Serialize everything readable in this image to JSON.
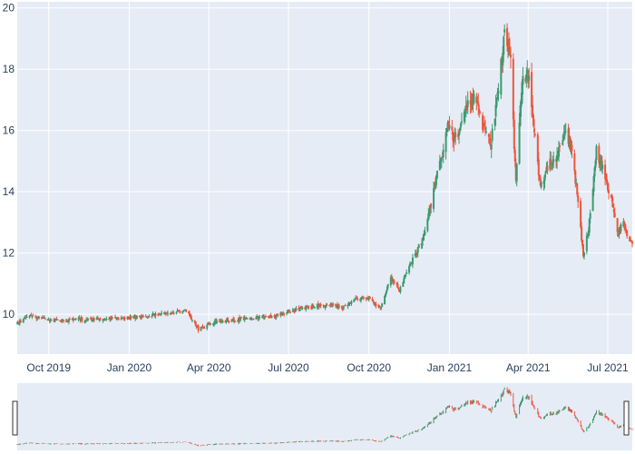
{
  "chart_data": {
    "type": "candlestick",
    "title": "",
    "xlabel": "",
    "ylabel": "",
    "ylim": [
      8.7,
      20.2
    ],
    "y_ticks": [
      10,
      12,
      14,
      16,
      18,
      20
    ],
    "x_range": [
      "2019-08-26",
      "2021-07-29"
    ],
    "x_ticks": [
      {
        "date": "2019-10-01",
        "label": "Oct 2019"
      },
      {
        "date": "2020-01-01",
        "label": "Jan 2020"
      },
      {
        "date": "2020-04-01",
        "label": "Apr 2020"
      },
      {
        "date": "2020-07-01",
        "label": "Jul 2020"
      },
      {
        "date": "2020-10-01",
        "label": "Oct 2020"
      },
      {
        "date": "2021-01-01",
        "label": "Jan 2021"
      },
      {
        "date": "2021-04-01",
        "label": "Apr 2021"
      },
      {
        "date": "2021-07-01",
        "label": "Jul 2021"
      }
    ],
    "close_path": [
      [
        "2019-08-26",
        9.7
      ],
      [
        "2019-09-10",
        9.95
      ],
      [
        "2019-09-25",
        9.85
      ],
      [
        "2019-10-10",
        9.8
      ],
      [
        "2019-10-31",
        9.82
      ],
      [
        "2019-11-30",
        9.85
      ],
      [
        "2019-12-20",
        9.88
      ],
      [
        "2020-01-15",
        9.92
      ],
      [
        "2020-02-10",
        10.02
      ],
      [
        "2020-03-05",
        10.1
      ],
      [
        "2020-03-16",
        9.75
      ],
      [
        "2020-03-20",
        9.5
      ],
      [
        "2020-04-05",
        9.75
      ],
      [
        "2020-04-30",
        9.82
      ],
      [
        "2020-05-20",
        9.88
      ],
      [
        "2020-06-15",
        9.92
      ],
      [
        "2020-07-01",
        10.1
      ],
      [
        "2020-07-25",
        10.25
      ],
      [
        "2020-08-15",
        10.3
      ],
      [
        "2020-09-01",
        10.2
      ],
      [
        "2020-09-20",
        10.55
      ],
      [
        "2020-10-01",
        10.5
      ],
      [
        "2020-10-15",
        10.2
      ],
      [
        "2020-10-25",
        11.2
      ],
      [
        "2020-11-05",
        10.8
      ],
      [
        "2020-11-20",
        11.8
      ],
      [
        "2020-12-01",
        12.4
      ],
      [
        "2020-12-10",
        13.5
      ],
      [
        "2020-12-20",
        14.8
      ],
      [
        "2020-12-31",
        16.2
      ],
      [
        "2021-01-10",
        15.5
      ],
      [
        "2021-01-20",
        16.8
      ],
      [
        "2021-01-31",
        17.2
      ],
      [
        "2021-02-10",
        16.0
      ],
      [
        "2021-02-17",
        15.5
      ],
      [
        "2021-02-25",
        17.0
      ],
      [
        "2021-03-05",
        19.3
      ],
      [
        "2021-03-12",
        18.2
      ],
      [
        "2021-03-18",
        14.3
      ],
      [
        "2021-03-25",
        17.5
      ],
      [
        "2021-04-01",
        17.8
      ],
      [
        "2021-04-08",
        16.0
      ],
      [
        "2021-04-15",
        14.2
      ],
      [
        "2021-04-25",
        15.0
      ],
      [
        "2021-05-05",
        15.2
      ],
      [
        "2021-05-15",
        16.0
      ],
      [
        "2021-05-20",
        15.4
      ],
      [
        "2021-05-27",
        14.0
      ],
      [
        "2021-06-03",
        11.9
      ],
      [
        "2021-06-10",
        13.0
      ],
      [
        "2021-06-18",
        15.3
      ],
      [
        "2021-06-25",
        14.8
      ],
      [
        "2021-07-05",
        13.8
      ],
      [
        "2021-07-12",
        12.6
      ],
      [
        "2021-07-18",
        13.0
      ],
      [
        "2021-07-25",
        12.5
      ],
      [
        "2021-07-29",
        12.3
      ]
    ],
    "rangeslider": true,
    "grid": true,
    "increasing_color": "#3d9970",
    "decreasing_color": "#ef553b"
  },
  "colors": {
    "plot_background": "#e5ecf6",
    "gridline": "#ffffff",
    "tick_text": "#2a3f5f",
    "rangeslider_handle": "#ffffff"
  }
}
